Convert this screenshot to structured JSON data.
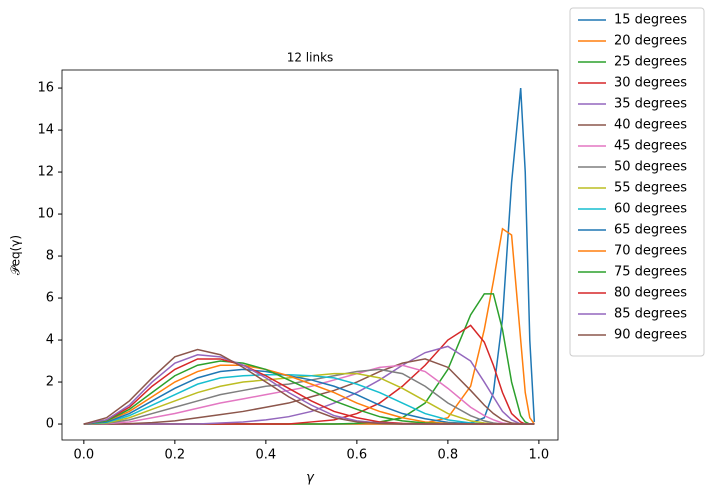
{
  "chart_data": {
    "type": "line",
    "title": "12 links",
    "xlabel": "γ",
    "ylabel": "𝒫eq(γ)",
    "x": [
      0,
      0.05,
      0.1,
      0.15,
      0.2,
      0.25,
      0.3,
      0.35,
      0.4,
      0.45,
      0.5,
      0.55,
      0.6,
      0.65,
      0.7,
      0.75,
      0.8,
      0.85,
      0.88,
      0.9,
      0.92,
      0.94,
      0.96,
      0.97,
      0.98,
      0.99
    ],
    "xlim": [
      -0.048,
      1.042
    ],
    "ylim": [
      -0.76,
      16.86
    ],
    "xticks": [
      {
        "value": 0,
        "label": "0.0"
      },
      0.2,
      0.4,
      0.6,
      0.8,
      {
        "value": 1,
        "label": "1.0"
      }
    ],
    "yticks": [
      0,
      2,
      4,
      6,
      8,
      10,
      12,
      14,
      16
    ],
    "legend": "outside-right",
    "series": [
      {
        "name": "15 degrees",
        "color": "#1f77b4",
        "values": [
          0,
          0,
          0,
          0,
          0,
          0,
          0,
          0,
          0,
          0,
          0,
          0,
          0,
          0,
          0,
          0,
          0,
          0.05,
          0.3,
          1.5,
          5,
          11.5,
          16,
          12,
          4,
          0.1
        ]
      },
      {
        "name": "20 degrees",
        "color": "#ff7f0e",
        "values": [
          0,
          0,
          0,
          0,
          0,
          0,
          0,
          0,
          0,
          0,
          0,
          0,
          0,
          0,
          0,
          0.05,
          0.3,
          1.8,
          4.5,
          6.8,
          9.3,
          9,
          4,
          1.5,
          0.3,
          0
        ]
      },
      {
        "name": "25 degrees",
        "color": "#2ca02c",
        "values": [
          0,
          0,
          0,
          0,
          0,
          0,
          0,
          0,
          0,
          0,
          0,
          0,
          0.03,
          0.1,
          0.3,
          1,
          2.6,
          5.2,
          6.2,
          6.2,
          4.5,
          2,
          0.4,
          0.1,
          0,
          0
        ]
      },
      {
        "name": "30 degrees",
        "color": "#d62728",
        "values": [
          0,
          0,
          0,
          0,
          0,
          0,
          0,
          0,
          0,
          0,
          0.1,
          0.2,
          0.5,
          1,
          1.8,
          2.8,
          4,
          4.7,
          3.9,
          2.8,
          1.5,
          0.5,
          0.1,
          0,
          0,
          0
        ]
      },
      {
        "name": "35 degrees",
        "color": "#9467bd",
        "values": [
          0,
          0,
          0,
          0,
          0,
          0,
          0.05,
          0.1,
          0.2,
          0.35,
          0.6,
          1,
          1.5,
          2.1,
          2.8,
          3.4,
          3.7,
          3,
          2,
          1.3,
          0.6,
          0.2,
          0,
          0,
          0,
          0
        ]
      },
      {
        "name": "40 degrees",
        "color": "#8c564b",
        "values": [
          0,
          0,
          0.02,
          0.07,
          0.15,
          0.3,
          0.45,
          0.6,
          0.8,
          1,
          1.3,
          1.6,
          2,
          2.5,
          2.9,
          3.1,
          2.7,
          1.6,
          0.9,
          0.5,
          0.2,
          0.05,
          0,
          0,
          0,
          0
        ]
      },
      {
        "name": "45 degrees",
        "color": "#e377c2",
        "values": [
          0,
          0.02,
          0.1,
          0.3,
          0.5,
          0.75,
          1,
          1.2,
          1.4,
          1.6,
          1.8,
          2.1,
          2.4,
          2.7,
          2.8,
          2.5,
          1.7,
          0.8,
          0.4,
          0.2,
          0.05,
          0,
          0,
          0,
          0,
          0
        ]
      },
      {
        "name": "50 degrees",
        "color": "#7f7f7f",
        "values": [
          0,
          0.03,
          0.2,
          0.5,
          0.8,
          1.1,
          1.4,
          1.6,
          1.8,
          1.9,
          2.1,
          2.3,
          2.5,
          2.6,
          2.4,
          1.8,
          1,
          0.4,
          0.15,
          0.05,
          0,
          0,
          0,
          0,
          0,
          0
        ]
      },
      {
        "name": "55 degrees",
        "color": "#bcbd22",
        "values": [
          0,
          0.05,
          0.3,
          0.7,
          1.1,
          1.5,
          1.8,
          2,
          2.1,
          2.2,
          2.3,
          2.4,
          2.4,
          2.2,
          1.7,
          1.1,
          0.5,
          0.15,
          0.05,
          0,
          0,
          0,
          0,
          0,
          0,
          0
        ]
      },
      {
        "name": "60 degrees",
        "color": "#17becf",
        "values": [
          0,
          0.08,
          0.4,
          0.9,
          1.4,
          1.9,
          2.2,
          2.3,
          2.35,
          2.35,
          2.3,
          2.2,
          1.9,
          1.5,
          1,
          0.5,
          0.2,
          0.05,
          0,
          0,
          0,
          0,
          0,
          0,
          0,
          0
        ]
      },
      {
        "name": "65 degrees",
        "color": "#1f77b4",
        "values": [
          0,
          0.1,
          0.5,
          1.1,
          1.7,
          2.2,
          2.5,
          2.6,
          2.5,
          2.3,
          2.1,
          1.8,
          1.4,
          0.9,
          0.5,
          0.25,
          0.08,
          0.02,
          0,
          0,
          0,
          0,
          0,
          0,
          0,
          0
        ]
      },
      {
        "name": "70 degrees",
        "color": "#ff7f0e",
        "values": [
          0,
          0.15,
          0.6,
          1.3,
          2,
          2.5,
          2.8,
          2.8,
          2.6,
          2.3,
          1.9,
          1.5,
          1,
          0.6,
          0.3,
          0.1,
          0.03,
          0,
          0,
          0,
          0,
          0,
          0,
          0,
          0,
          0
        ]
      },
      {
        "name": "75 degrees",
        "color": "#2ca02c",
        "values": [
          0,
          0.15,
          0.7,
          1.5,
          2.3,
          2.8,
          3,
          2.9,
          2.6,
          2.1,
          1.6,
          1.1,
          0.7,
          0.35,
          0.15,
          0.05,
          0,
          0,
          0,
          0,
          0,
          0,
          0,
          0,
          0,
          0
        ]
      },
      {
        "name": "80 degrees",
        "color": "#d62728",
        "values": [
          0,
          0.2,
          0.8,
          1.8,
          2.6,
          3.1,
          3.1,
          2.8,
          2.3,
          1.7,
          1.1,
          0.6,
          0.3,
          0.1,
          0.03,
          0,
          0,
          0,
          0,
          0,
          0,
          0,
          0,
          0,
          0,
          0
        ]
      },
      {
        "name": "85 degrees",
        "color": "#9467bd",
        "values": [
          0,
          0.2,
          0.9,
          2,
          2.9,
          3.3,
          3.2,
          2.8,
          2.2,
          1.5,
          0.9,
          0.4,
          0.15,
          0.05,
          0,
          0,
          0,
          0,
          0,
          0,
          0,
          0,
          0,
          0,
          0,
          0
        ]
      },
      {
        "name": "90 degrees",
        "color": "#8c564b",
        "values": [
          0,
          0.3,
          1.1,
          2.2,
          3.2,
          3.55,
          3.3,
          2.7,
          2,
          1.3,
          0.7,
          0.3,
          0.1,
          0.03,
          0,
          0,
          0,
          0,
          0,
          0,
          0,
          0,
          0,
          0,
          0,
          0
        ]
      }
    ]
  }
}
